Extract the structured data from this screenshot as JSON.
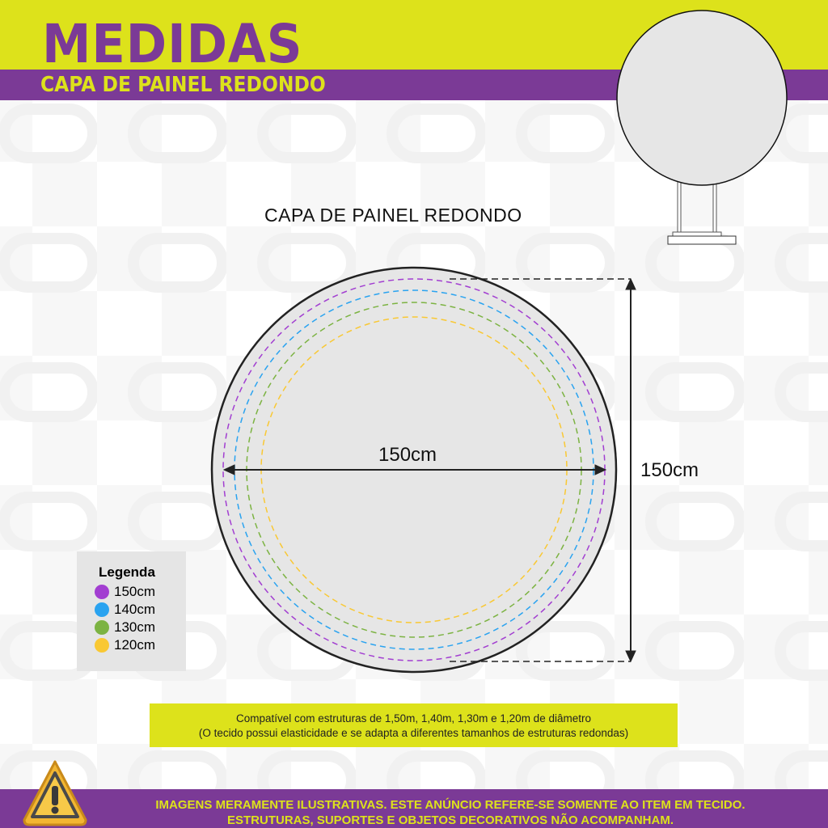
{
  "header": {
    "title": "MEDIDAS",
    "subtitle": "CAPA DE PAINEL REDONDO"
  },
  "diagram": {
    "caption": "CAPA DE PAINEL REDONDO",
    "width_label": "150cm",
    "height_label": "150cm"
  },
  "legend": {
    "title": "Legenda",
    "items": [
      {
        "label": "150cm",
        "color": "#a23ed1"
      },
      {
        "label": "140cm",
        "color": "#2aa3f0"
      },
      {
        "label": "130cm",
        "color": "#7cb342"
      },
      {
        "label": "120cm",
        "color": "#f9c833"
      }
    ]
  },
  "note": {
    "line1": "Compatível com estruturas de 1,50m, 1,40m, 1,30m e 1,20m de diâmetro",
    "line2": "(O tecido possui elasticidade e se adapta a diferentes tamanhos de estruturas redondas)"
  },
  "footer": {
    "line1": "IMAGENS MERAMENTE ILUSTRATIVAS. ESTE ANÚNCIO REFERE-SE SOMENTE AO ITEM EM TECIDO.",
    "line2": "ESTRUTURAS, SUPORTES E OBJETOS DECORATIVOS NÃO ACOMPANHAM."
  },
  "colors": {
    "yellow": "#dde21b",
    "purple": "#7b3a96"
  }
}
